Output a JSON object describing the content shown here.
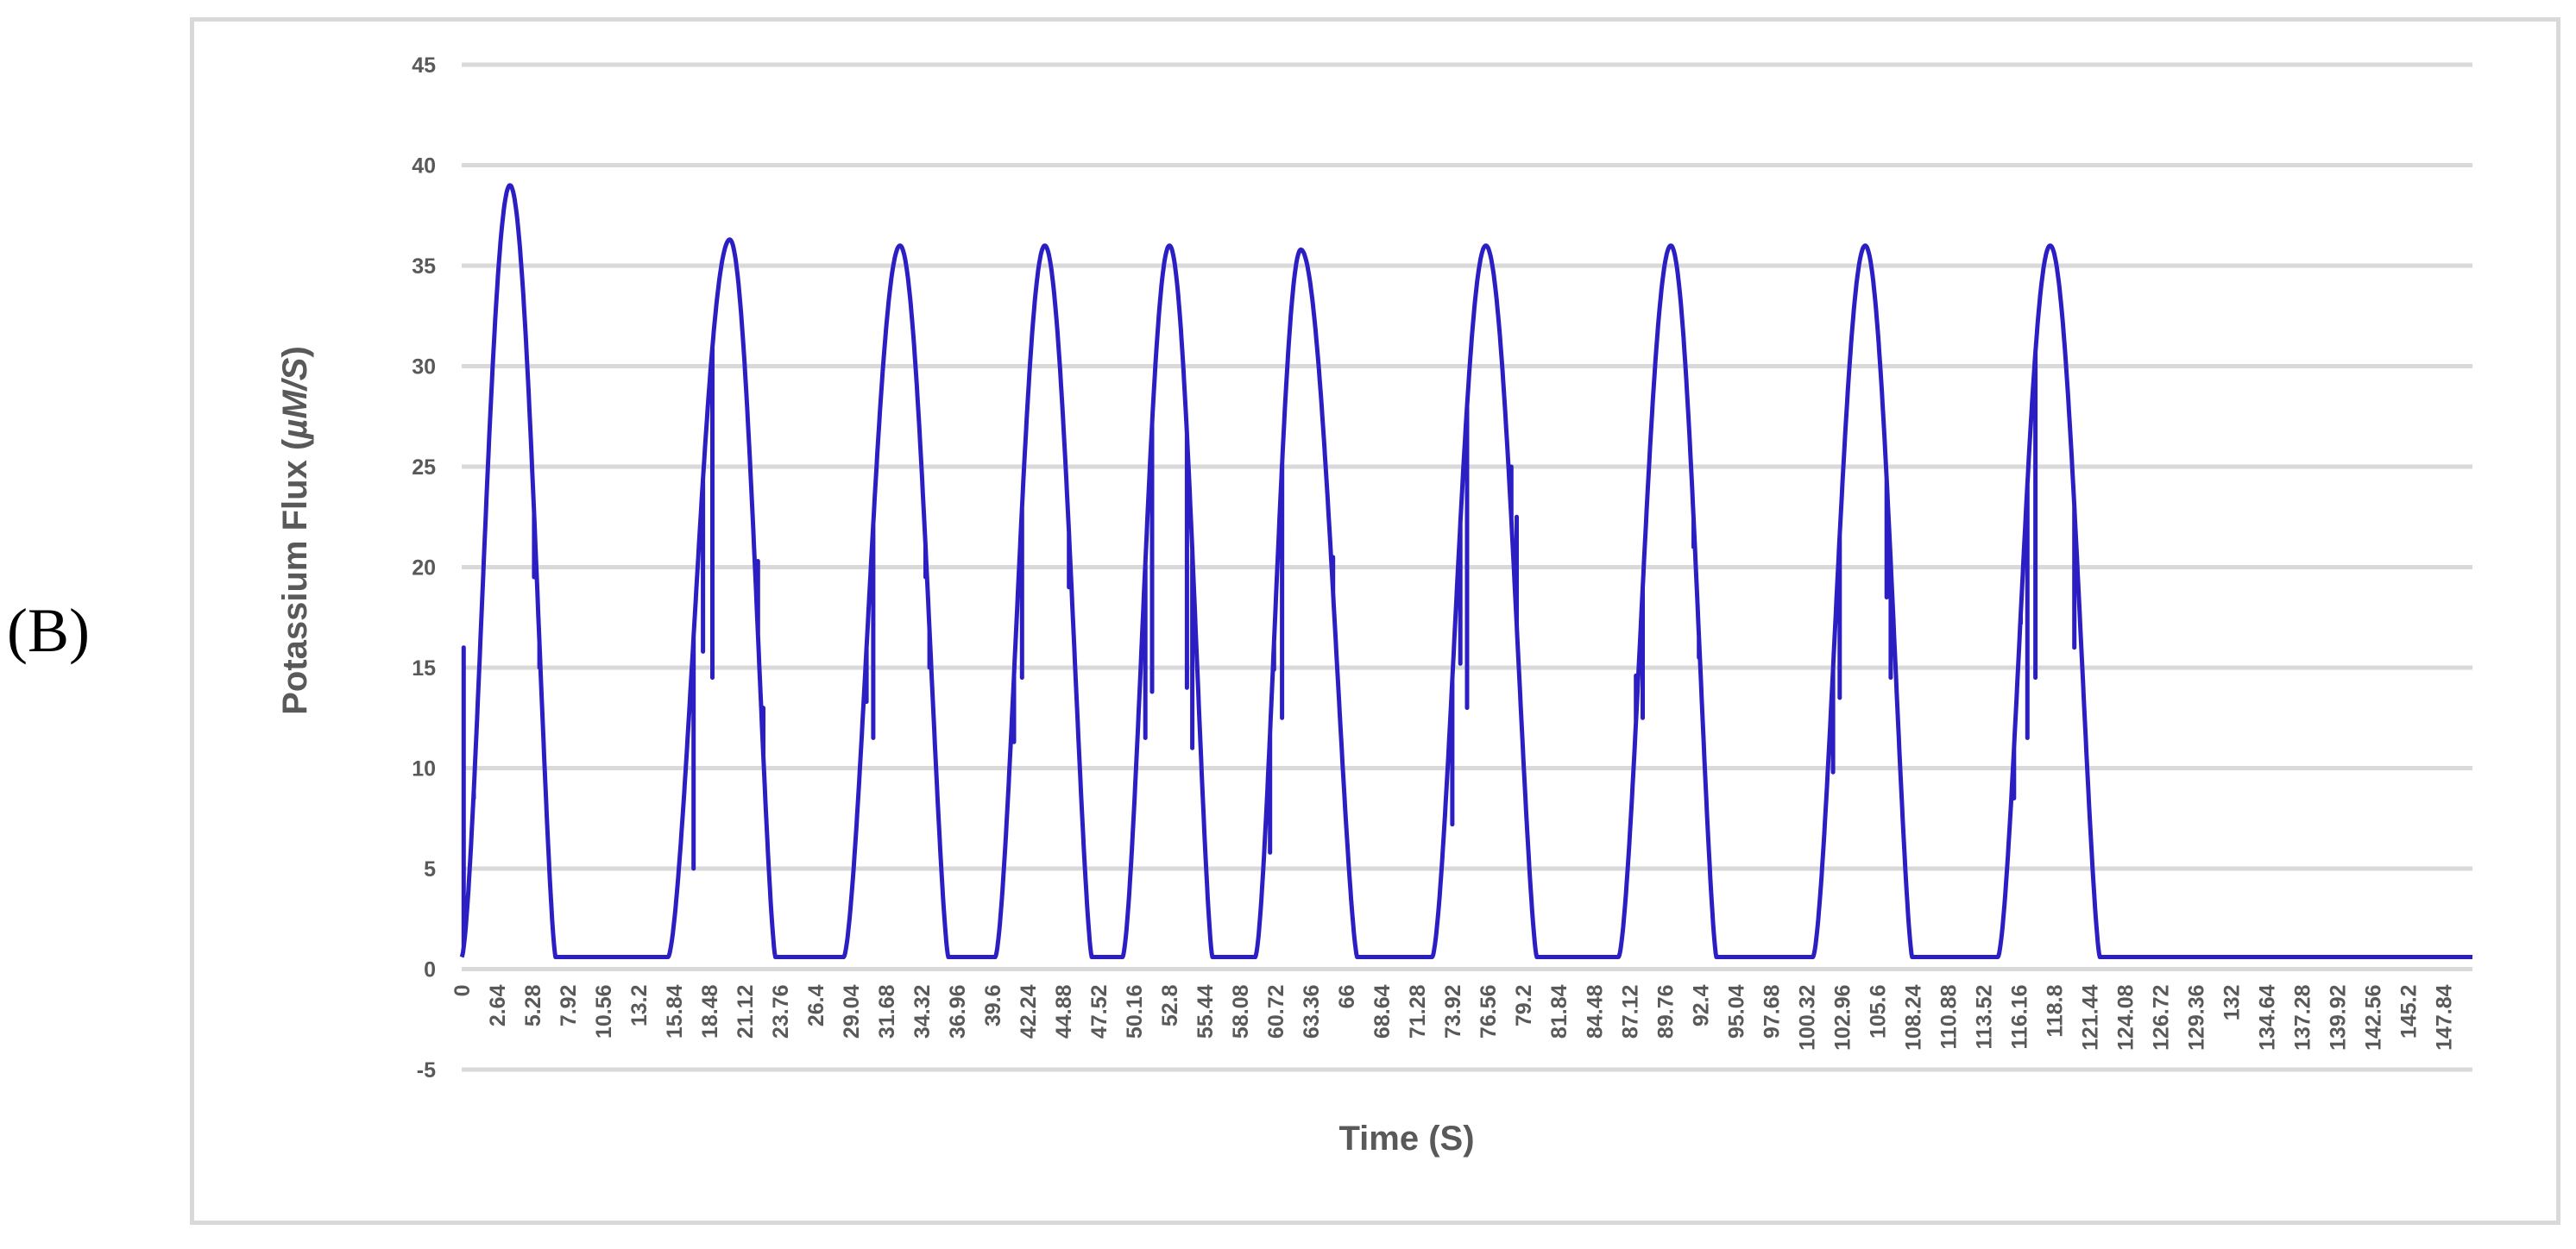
{
  "panel_label": "(B)",
  "chart_data": {
    "type": "line",
    "title": "",
    "xlabel": "Time (S)",
    "ylabel": "Potassium Flux (",
    "ylabel_unit": "µM/S",
    "ylabel_close": ")",
    "ylim": [
      -5,
      45
    ],
    "yticks": [
      -5,
      0,
      5,
      10,
      15,
      20,
      25,
      30,
      35,
      40,
      45
    ],
    "xlim": [
      0,
      150
    ],
    "xticks": [
      "0",
      "2.64",
      "5.28",
      "7.92",
      "10.56",
      "13.2",
      "15.84",
      "18.48",
      "21.12",
      "23.76",
      "26.4",
      "29.04",
      "31.68",
      "34.32",
      "36.96",
      "39.6",
      "42.24",
      "44.88",
      "47.52",
      "50.16",
      "52.8",
      "55.44",
      "58.08",
      "60.72",
      "63.36",
      "66",
      "68.64",
      "71.28",
      "73.92",
      "76.56",
      "79.2",
      "81.84",
      "84.48",
      "87.12",
      "89.76",
      "92.4",
      "95.04",
      "97.68",
      "100.32",
      "102.96",
      "105.6",
      "108.24",
      "110.88",
      "113.52",
      "116.16",
      "118.8",
      "121.44",
      "124.08",
      "126.72",
      "129.36",
      "132",
      "134.64",
      "137.28",
      "139.92",
      "142.56",
      "145.2",
      "147.84"
    ],
    "grid": true,
    "legend": "none",
    "line_color": "#2b1fc4",
    "baseline": 0.6,
    "peaks": [
      {
        "start": 0.0,
        "end": 7.0,
        "peak_time": 3.6,
        "peak_value": 39.0,
        "spikes": [
          [
            0.15,
            16.0
          ],
          [
            0.9,
            8.5
          ],
          [
            5.4,
            19.5
          ],
          [
            5.8,
            15.0
          ]
        ]
      },
      {
        "start": 15.4,
        "end": 23.4,
        "peak_time": 20.0,
        "peak_value": 36.3,
        "spikes": [
          [
            17.3,
            5.0
          ],
          [
            18.0,
            15.8
          ],
          [
            18.7,
            14.5
          ],
          [
            22.1,
            20.3
          ],
          [
            22.5,
            13.0
          ]
        ]
      },
      {
        "start": 28.5,
        "end": 36.3,
        "peak_time": 32.7,
        "peak_value": 36.0,
        "spikes": [
          [
            30.2,
            13.3
          ],
          [
            30.7,
            11.5
          ],
          [
            34.6,
            19.5
          ],
          [
            34.9,
            15.0
          ]
        ]
      },
      {
        "start": 39.8,
        "end": 47.0,
        "peak_time": 43.5,
        "peak_value": 36.0,
        "spikes": [
          [
            41.2,
            11.3
          ],
          [
            41.8,
            14.5
          ],
          [
            45.3,
            19.0
          ]
        ]
      },
      {
        "start": 49.3,
        "end": 56.0,
        "peak_time": 52.8,
        "peak_value": 36.0,
        "spikes": [
          [
            51.0,
            11.5
          ],
          [
            51.5,
            13.8
          ],
          [
            54.1,
            14.0
          ],
          [
            54.5,
            11.0
          ]
        ]
      },
      {
        "start": 59.2,
        "end": 66.8,
        "peak_time": 62.6,
        "peak_value": 35.8,
        "spikes": [
          [
            60.3,
            5.8
          ],
          [
            60.6,
            14.9
          ],
          [
            61.2,
            12.5
          ],
          [
            65.0,
            20.5
          ]
        ]
      },
      {
        "start": 72.4,
        "end": 80.2,
        "peak_time": 76.4,
        "peak_value": 36.0,
        "spikes": [
          [
            73.9,
            7.2
          ],
          [
            74.5,
            15.2
          ],
          [
            75.0,
            13.0
          ],
          [
            78.3,
            25.0
          ],
          [
            78.7,
            22.5
          ]
        ]
      },
      {
        "start": 86.3,
        "end": 93.6,
        "peak_time": 90.2,
        "peak_value": 36.0,
        "spikes": [
          [
            87.6,
            14.6
          ],
          [
            88.1,
            12.5
          ],
          [
            91.9,
            21.0
          ],
          [
            92.3,
            15.5
          ]
        ]
      },
      {
        "start": 100.8,
        "end": 108.2,
        "peak_time": 104.7,
        "peak_value": 36.0,
        "spikes": [
          [
            102.3,
            9.8
          ],
          [
            102.8,
            13.5
          ],
          [
            106.3,
            18.5
          ],
          [
            106.6,
            14.5
          ]
        ]
      },
      {
        "start": 114.6,
        "end": 122.2,
        "peak_time": 118.5,
        "peak_value": 36.0,
        "spikes": [
          [
            115.8,
            8.5
          ],
          [
            116.3,
            17.2
          ],
          [
            116.8,
            11.5
          ],
          [
            117.4,
            14.5
          ],
          [
            120.3,
            16.0
          ]
        ]
      }
    ]
  }
}
